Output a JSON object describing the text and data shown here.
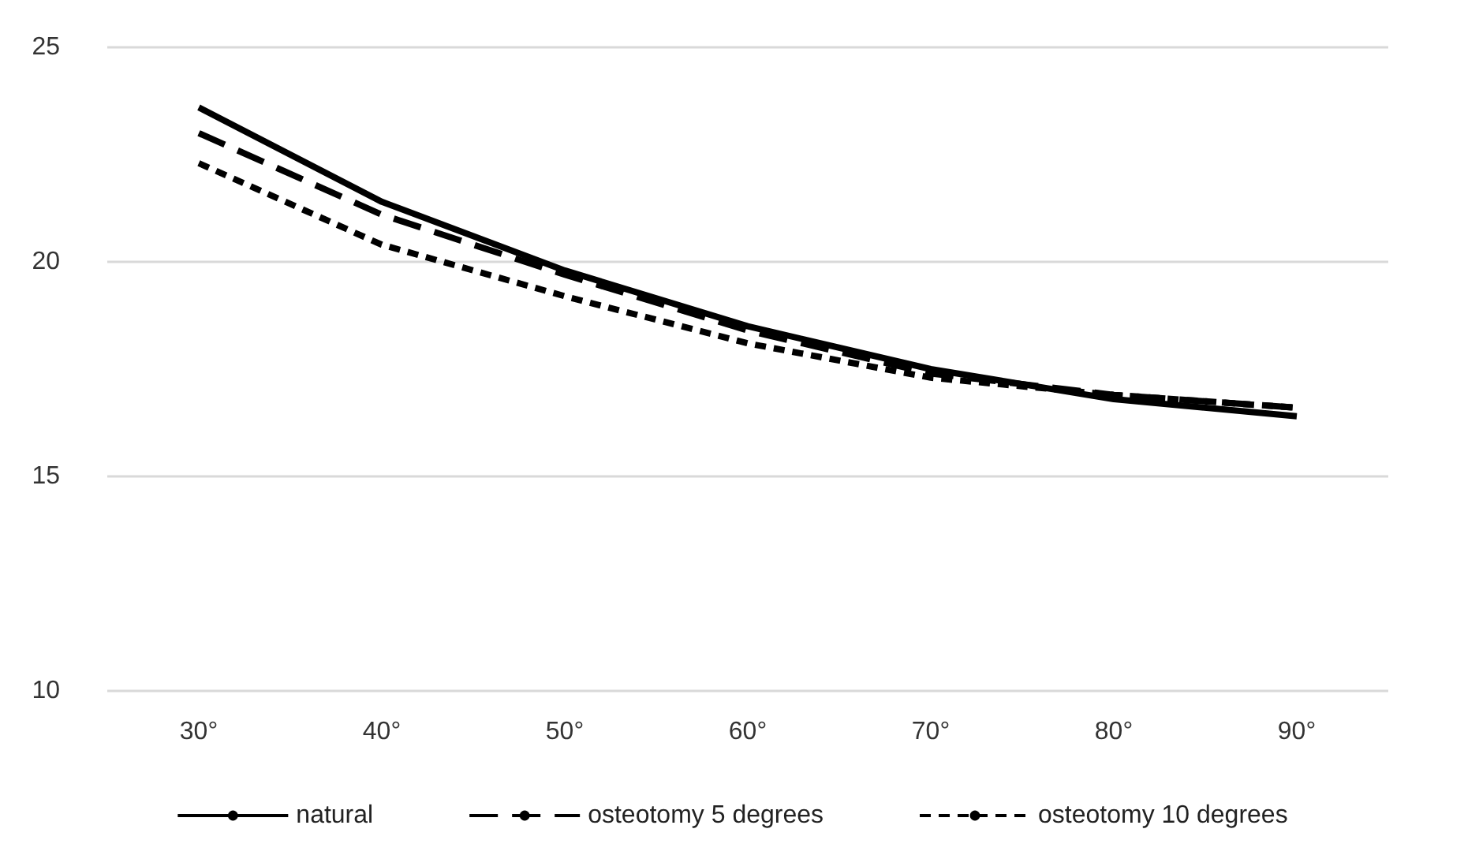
{
  "chart_data": {
    "type": "line",
    "categories": [
      "30°",
      "40°",
      "50°",
      "60°",
      "70°",
      "80°",
      "90°"
    ],
    "series": [
      {
        "name": "natural",
        "color": "#000000",
        "line_style": "solid",
        "values": [
          23.6,
          21.4,
          19.8,
          18.5,
          17.5,
          16.8,
          16.4
        ]
      },
      {
        "name": "osteotomy 5 degrees",
        "color": "#000000",
        "line_style": "dashed",
        "values": [
          23.0,
          21.1,
          19.7,
          18.4,
          17.4,
          16.9,
          16.6
        ]
      },
      {
        "name": "osteotomy 10 degrees",
        "color": "#000000",
        "line_style": "dotted",
        "values": [
          22.3,
          20.4,
          19.2,
          18.1,
          17.3,
          16.9,
          16.6
        ]
      }
    ],
    "ylim": [
      10,
      25
    ],
    "yticks": [
      10,
      15,
      20,
      25
    ],
    "grid": "y",
    "legend": "bottom",
    "marker": "none"
  }
}
